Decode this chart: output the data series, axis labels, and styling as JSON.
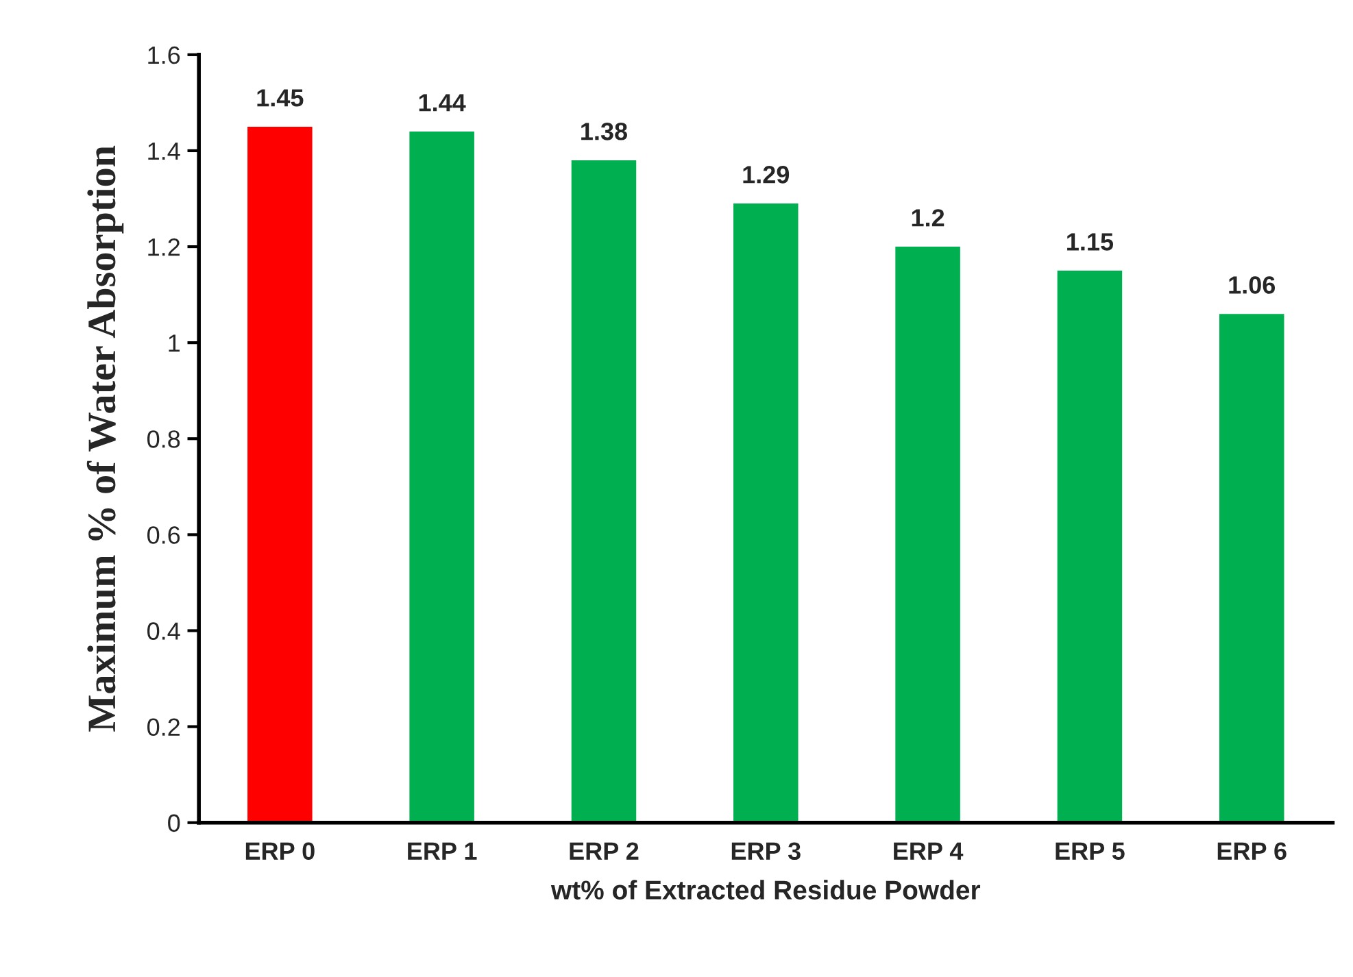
{
  "chart_data": {
    "type": "bar",
    "xlabel": "wt% of Extracted Residue Powder",
    "ylabel": "Maximum % of Water Absorption",
    "categories": [
      "ERP 0",
      "ERP 1",
      "ERP 2",
      "ERP 3",
      "ERP 4",
      "ERP 5",
      "ERP 6"
    ],
    "values": [
      1.45,
      1.44,
      1.38,
      1.29,
      1.2,
      1.15,
      1.06
    ],
    "colors": [
      "#ff0000",
      "#00b050",
      "#00b050",
      "#00b050",
      "#00b050",
      "#00b050",
      "#00b050"
    ],
    "ylim": [
      0,
      1.6
    ],
    "yticks": [
      0,
      0.2,
      0.4,
      0.6,
      0.8,
      1,
      1.2,
      1.4,
      1.6
    ],
    "data_labels": true,
    "grid": false,
    "legend": false
  }
}
